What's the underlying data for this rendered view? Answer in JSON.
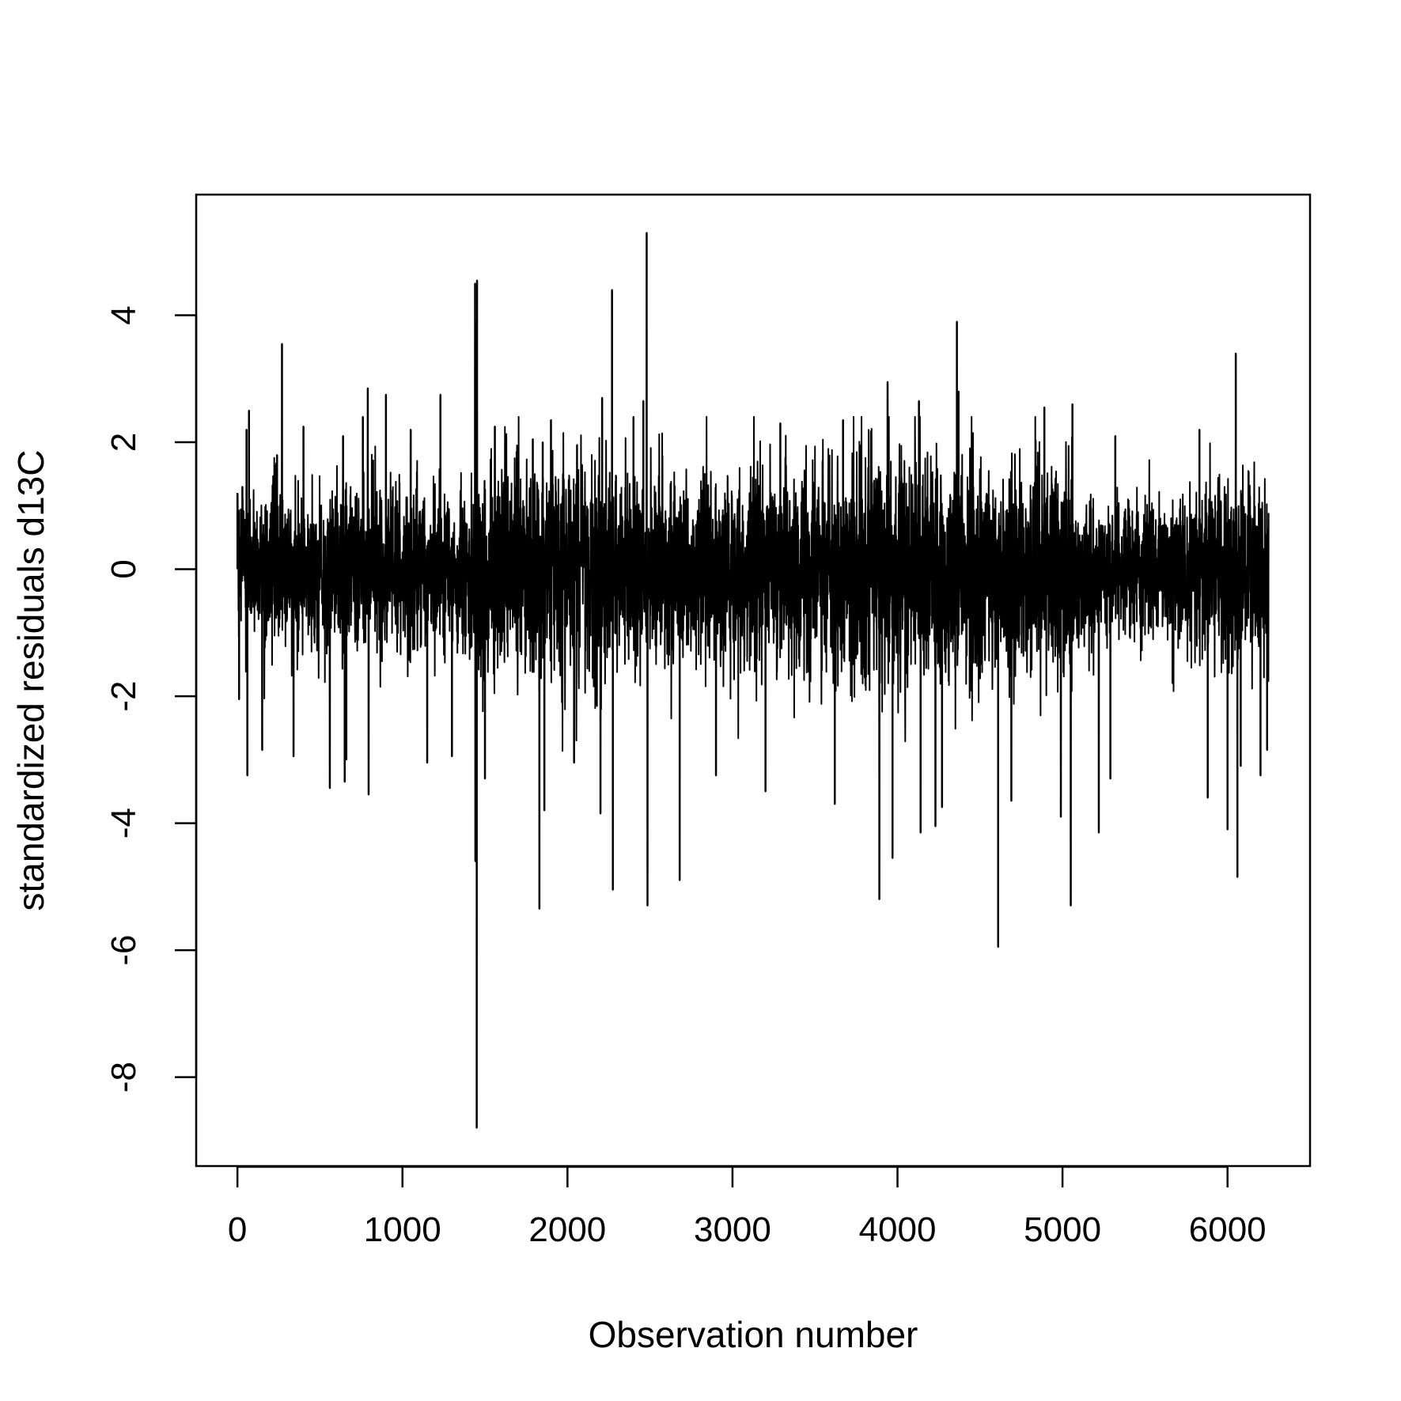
{
  "chart_data": {
    "type": "line",
    "title": "",
    "xlabel": "Observation number",
    "ylabel": "standardized residuals d13C",
    "xlim": [
      -250,
      6500
    ],
    "ylim": [
      -9.4,
      5.9
    ],
    "x_ticks": [
      0,
      1000,
      2000,
      3000,
      4000,
      5000,
      6000
    ],
    "x_tick_labels": [
      "0",
      "1000",
      "2000",
      "3000",
      "4000",
      "5000",
      "6000"
    ],
    "y_ticks": [
      -8,
      -6,
      -4,
      -2,
      0,
      2,
      4
    ],
    "y_tick_labels": [
      "-8",
      "-6",
      "-4",
      "-2",
      "0",
      "2",
      "4"
    ],
    "grid": false,
    "n_points": 6250,
    "series": [
      {
        "line_color": "#000000",
        "band_sd": [
          [
            0,
            0.55
          ],
          [
            1400,
            0.65
          ],
          [
            1450,
            0.9
          ],
          [
            1800,
            0.85
          ],
          [
            2300,
            0.78
          ],
          [
            2600,
            0.7
          ],
          [
            3300,
            0.82
          ],
          [
            3800,
            0.92
          ],
          [
            4500,
            0.86
          ],
          [
            5050,
            0.82
          ],
          [
            5100,
            0.55
          ],
          [
            5600,
            0.55
          ],
          [
            5800,
            0.6
          ],
          [
            5900,
            0.78
          ],
          [
            6250,
            0.78
          ]
        ],
        "extremes": [
          {
            "x": 0,
            "y": 1.2
          },
          {
            "x": 10,
            "y": -2.05
          },
          {
            "x": 30,
            "y": 1.3
          },
          {
            "x": 55,
            "y": 2.2
          },
          {
            "x": 60,
            "y": -3.25
          },
          {
            "x": 70,
            "y": 2.5
          },
          {
            "x": 150,
            "y": -2.85
          },
          {
            "x": 240,
            "y": 1.8
          },
          {
            "x": 270,
            "y": 3.55
          },
          {
            "x": 340,
            "y": -2.95
          },
          {
            "x": 400,
            "y": 2.25
          },
          {
            "x": 560,
            "y": -3.45
          },
          {
            "x": 640,
            "y": 2.1
          },
          {
            "x": 650,
            "y": -3.35
          },
          {
            "x": 660,
            "y": -3.0
          },
          {
            "x": 760,
            "y": 2.4
          },
          {
            "x": 790,
            "y": 2.85
          },
          {
            "x": 795,
            "y": -3.55
          },
          {
            "x": 900,
            "y": 2.75
          },
          {
            "x": 1050,
            "y": 2.2
          },
          {
            "x": 1150,
            "y": -3.05
          },
          {
            "x": 1230,
            "y": 2.75
          },
          {
            "x": 1300,
            "y": -2.95
          },
          {
            "x": 1440,
            "y": 4.5
          },
          {
            "x": 1442,
            "y": -4.6
          },
          {
            "x": 1445,
            "y": 3.9
          },
          {
            "x": 1450,
            "y": -8.8
          },
          {
            "x": 1452,
            "y": 4.55
          },
          {
            "x": 1500,
            "y": -3.3
          },
          {
            "x": 1560,
            "y": 2.25
          },
          {
            "x": 1790,
            "y": 2.05
          },
          {
            "x": 1830,
            "y": -5.35
          },
          {
            "x": 1850,
            "y": 2.0
          },
          {
            "x": 1860,
            "y": -3.8
          },
          {
            "x": 1900,
            "y": 2.35
          },
          {
            "x": 2040,
            "y": -3.05
          },
          {
            "x": 2200,
            "y": -3.85
          },
          {
            "x": 2210,
            "y": 2.7
          },
          {
            "x": 2270,
            "y": 4.4
          },
          {
            "x": 2275,
            "y": -5.05
          },
          {
            "x": 2400,
            "y": 2.4
          },
          {
            "x": 2460,
            "y": 2.65
          },
          {
            "x": 2480,
            "y": 5.3
          },
          {
            "x": 2485,
            "y": -5.3
          },
          {
            "x": 2680,
            "y": -4.9
          },
          {
            "x": 2900,
            "y": -3.25
          },
          {
            "x": 3200,
            "y": -3.5
          },
          {
            "x": 3290,
            "y": 2.3
          },
          {
            "x": 3620,
            "y": -3.7
          },
          {
            "x": 3670,
            "y": 2.35
          },
          {
            "x": 3890,
            "y": -5.2
          },
          {
            "x": 3940,
            "y": 2.95
          },
          {
            "x": 3970,
            "y": -4.55
          },
          {
            "x": 4130,
            "y": 2.65
          },
          {
            "x": 4140,
            "y": -4.15
          },
          {
            "x": 4230,
            "y": -4.05
          },
          {
            "x": 4270,
            "y": -3.75
          },
          {
            "x": 4360,
            "y": 3.9
          },
          {
            "x": 4370,
            "y": 2.8
          },
          {
            "x": 4610,
            "y": -5.95
          },
          {
            "x": 4690,
            "y": -3.65
          },
          {
            "x": 4890,
            "y": 2.55
          },
          {
            "x": 4990,
            "y": -3.9
          },
          {
            "x": 5050,
            "y": -5.3
          },
          {
            "x": 5060,
            "y": 2.6
          },
          {
            "x": 5220,
            "y": -4.15
          },
          {
            "x": 5290,
            "y": -3.3
          },
          {
            "x": 5320,
            "y": 2.1
          },
          {
            "x": 5830,
            "y": 2.2
          },
          {
            "x": 5880,
            "y": -3.6
          },
          {
            "x": 6000,
            "y": -4.1
          },
          {
            "x": 6050,
            "y": 3.4
          },
          {
            "x": 6060,
            "y": -4.85
          },
          {
            "x": 6080,
            "y": -3.1
          },
          {
            "x": 6200,
            "y": -3.25
          },
          {
            "x": 6240,
            "y": -2.85
          }
        ]
      }
    ]
  }
}
